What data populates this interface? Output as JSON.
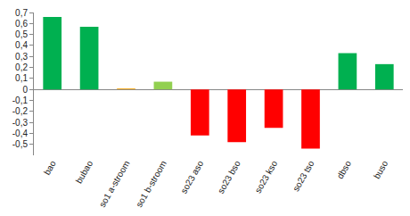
{
  "chart_data": {
    "type": "bar",
    "categories": [
      "bao",
      "bubao",
      "so1 a-stroom",
      "so1 b-stroom",
      "so23 aso",
      "so23 bso",
      "so23 kso",
      "so23 tso",
      "dbso",
      "buso"
    ],
    "values": [
      0.66,
      0.57,
      0.01,
      0.07,
      -0.42,
      -0.48,
      -0.35,
      -0.54,
      0.33,
      0.23
    ],
    "colors": [
      "#00b050",
      "#00b050",
      "#f5b335",
      "#92d050",
      "#ff0000",
      "#ff0000",
      "#ff0000",
      "#ff0000",
      "#00b050",
      "#00b050"
    ],
    "ylim": [
      -0.6,
      0.7
    ],
    "yticks": [
      {
        "value": -0.5,
        "label": "-0,5"
      },
      {
        "value": -0.4,
        "label": "-0,4"
      },
      {
        "value": -0.3,
        "label": "-0,3"
      },
      {
        "value": -0.2,
        "label": "-0,2"
      },
      {
        "value": -0.1,
        "label": "-0,1"
      },
      0,
      {
        "value": 0.1,
        "label": "0,1"
      },
      {
        "value": 0.2,
        "label": "0,2"
      },
      {
        "value": 0.3,
        "label": "0,3"
      },
      {
        "value": 0.4,
        "label": "0,4"
      },
      {
        "value": 0.5,
        "label": "0,5"
      },
      {
        "value": 0.6,
        "label": "0,6"
      },
      {
        "value": 0.7,
        "label": "0,7"
      }
    ],
    "grid": false
  }
}
